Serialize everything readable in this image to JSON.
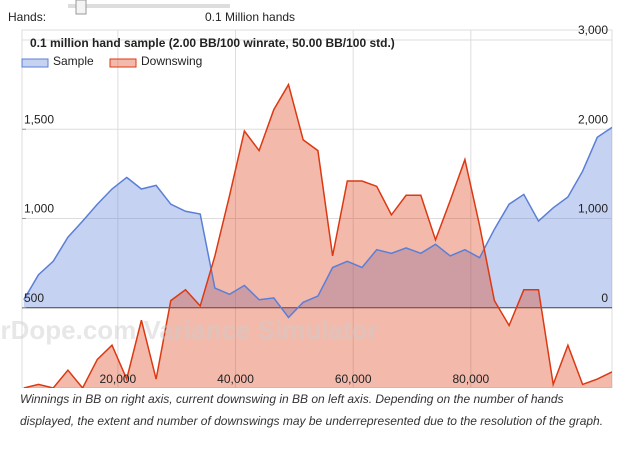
{
  "ui": {
    "hands_label": "Hands:",
    "hands_value": "0.1 Million hands"
  },
  "chart_data": {
    "type": "area",
    "title": "0.1 million hand sample (2.00 BB/100 winrate, 50.00 BB/100 std.)",
    "watermark": "PokerDope.com Variance Simulator",
    "x": [
      4000,
      6500,
      9000,
      11500,
      14000,
      16500,
      19000,
      21500,
      24000,
      26500,
      29000,
      31500,
      34000,
      36500,
      39000,
      41500,
      44000,
      46500,
      49000,
      51500,
      54000,
      56500,
      59000,
      61500,
      64000,
      66500,
      69000,
      71500,
      74000,
      76500,
      79000,
      81500,
      84000,
      86500,
      89000,
      91500,
      94000,
      96500,
      99000,
      101500,
      104000
    ],
    "xlim": [
      3700,
      104000
    ],
    "xticks": [
      {
        "value": 20000,
        "label": "20,000"
      },
      {
        "value": 40000,
        "label": "40,000"
      },
      {
        "value": 60000,
        "label": "60,000"
      },
      {
        "value": 80000,
        "label": "80,000"
      }
    ],
    "ylim": [
      50,
      2000
    ],
    "yticks": [
      500,
      {
        "value": 1000,
        "label": "1,000"
      },
      {
        "value": 1500,
        "label": "1,500"
      }
    ],
    "y2lim": [
      -900,
      3000
    ],
    "y2ticks": [
      0,
      {
        "value": 1000,
        "label": "1,000"
      },
      {
        "value": 2000,
        "label": "2,000"
      },
      {
        "value": 3000,
        "label": "3,000"
      }
    ],
    "grid": true,
    "series": [
      {
        "name": "Sample",
        "color": "#5b7fd6",
        "axis": "y2",
        "values": [
          90,
          370,
          520,
          790,
          970,
          1160,
          1330,
          1460,
          1330,
          1370,
          1160,
          1080,
          1050,
          220,
          150,
          250,
          90,
          110,
          -110,
          60,
          130,
          450,
          520,
          450,
          650,
          610,
          670,
          610,
          710,
          580,
          650,
          560,
          880,
          1160,
          1270,
          970,
          1120,
          1240,
          1530,
          1910,
          2020
        ]
      },
      {
        "name": "Downswing",
        "color": "#dc3912",
        "values": [
          50,
          70,
          50,
          150,
          50,
          210,
          290,
          100,
          430,
          100,
          540,
          600,
          510,
          790,
          1130,
          1490,
          1380,
          1610,
          1750,
          1440,
          1380,
          790,
          1210,
          1210,
          1180,
          1020,
          1130,
          1130,
          880,
          1100,
          1330,
          960,
          540,
          400,
          600,
          600,
          70,
          290,
          70,
          100,
          140
        ]
      }
    ]
  },
  "caption": "Winnings in BB on right axis, current downswing in BB on left axis. Depending on the number of hands displayed, the extent and number of downswings may be underrepresented due to the resolution of the graph."
}
